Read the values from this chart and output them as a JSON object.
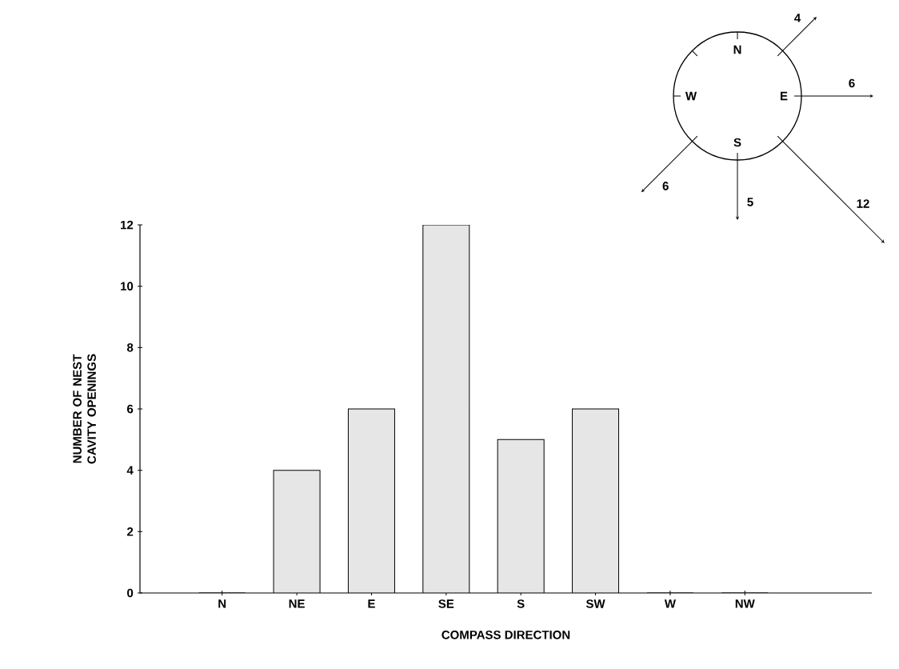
{
  "chart_data": {
    "type": "bar",
    "xlabel": "COMPASS DIRECTION",
    "ylabel": "NUMBER OF NEST CAVITY OPENINGS",
    "categories": [
      "N",
      "NE",
      "E",
      "SE",
      "S",
      "SW",
      "W",
      "NW"
    ],
    "values": [
      0,
      4,
      6,
      12,
      5,
      6,
      0,
      0
    ],
    "color": "#e6e6e6",
    "ylim": [
      0,
      12
    ],
    "yticks": [
      0,
      2,
      4,
      6,
      8,
      10,
      12
    ],
    "grid": false,
    "annotations": [
      "4",
      "6",
      "12",
      "5",
      "6"
    ]
  }
}
